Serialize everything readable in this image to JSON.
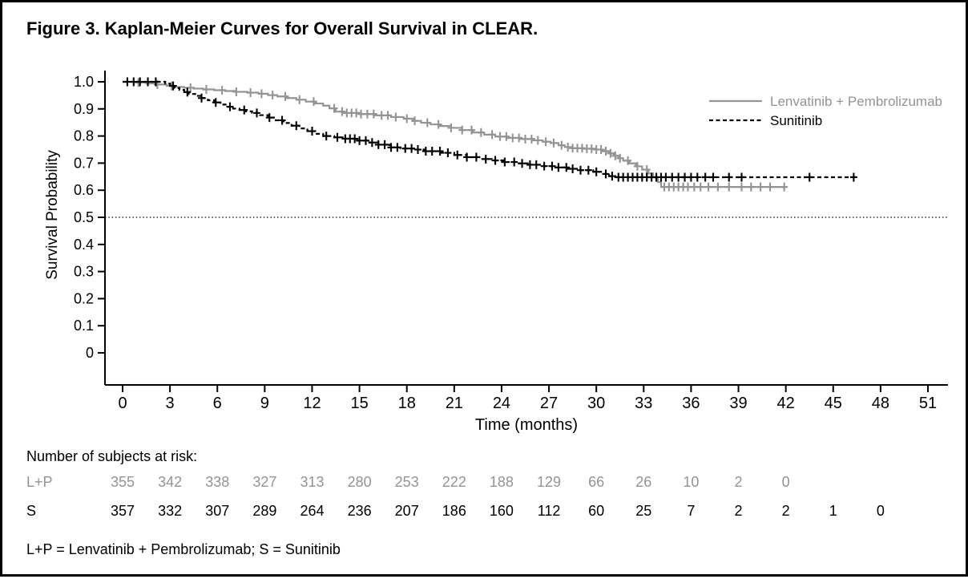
{
  "figure": {
    "title": "Figure 3. Kaplan-Meier Curves for Overall Survival in CLEAR.",
    "risk_header": "Number of subjects at risk:",
    "footnote": "L+P = Lenvatinib + Pembrolizumab; S = Sunitinib"
  },
  "colors": {
    "lp_gray": "#949494",
    "black": "#000000",
    "background": "#ffffff",
    "border": "#000000"
  },
  "chart_data": {
    "type": "line",
    "subtype": "kaplan-meier-step",
    "title": "",
    "xlabel": "Time (months)",
    "ylabel": "Survival Probability",
    "xlim": [
      0,
      51
    ],
    "xticks": [
      0,
      3,
      6,
      9,
      12,
      15,
      18,
      21,
      24,
      27,
      30,
      33,
      36,
      39,
      42,
      45,
      48,
      51
    ],
    "ylim": [
      0,
      1.0
    ],
    "yticks": [
      0,
      0.1,
      0.2,
      0.3,
      0.4,
      0.5,
      0.6,
      0.7,
      0.8,
      0.9,
      1.0
    ],
    "ytick_labels": [
      "0",
      "0.1",
      "0.2",
      "0.3",
      "0.4",
      "0.5",
      "0.6",
      "0.7",
      "0.8",
      "0.9",
      "1.0"
    ],
    "grid": false,
    "reference_line": {
      "y": 0.5,
      "style": "dotted"
    },
    "legend": {
      "position": "top-right",
      "entries": [
        {
          "label": "Lenvatinib + Pembrolizumab",
          "color": "#949494",
          "line_style": "solid"
        },
        {
          "label": "Sunitinib",
          "color": "#000000",
          "line_style": "dashed"
        }
      ]
    },
    "series": [
      {
        "name": "Lenvatinib + Pembrolizumab",
        "abbr": "L+P",
        "color": "#949494",
        "line_style": "solid",
        "steps": [
          [
            0,
            1.0
          ],
          [
            0.8,
            0.997
          ],
          [
            1.5,
            0.994
          ],
          [
            2.2,
            0.99
          ],
          [
            2.8,
            0.985
          ],
          [
            3.3,
            0.981
          ],
          [
            3.9,
            0.978
          ],
          [
            4.5,
            0.975
          ],
          [
            5.1,
            0.972
          ],
          [
            5.8,
            0.969
          ],
          [
            6.5,
            0.966
          ],
          [
            7.2,
            0.963
          ],
          [
            7.9,
            0.96
          ],
          [
            8.6,
            0.956
          ],
          [
            9.2,
            0.951
          ],
          [
            9.8,
            0.946
          ],
          [
            10.4,
            0.94
          ],
          [
            11.0,
            0.934
          ],
          [
            11.6,
            0.927
          ],
          [
            12.2,
            0.92
          ],
          [
            12.7,
            0.912
          ],
          [
            13.1,
            0.902
          ],
          [
            13.5,
            0.89
          ],
          [
            14.0,
            0.885
          ],
          [
            15.0,
            0.881
          ],
          [
            16.0,
            0.876
          ],
          [
            17.0,
            0.87
          ],
          [
            17.8,
            0.864
          ],
          [
            18.4,
            0.856
          ],
          [
            18.9,
            0.849
          ],
          [
            19.5,
            0.843
          ],
          [
            20.1,
            0.837
          ],
          [
            20.8,
            0.83
          ],
          [
            21.5,
            0.822
          ],
          [
            22.2,
            0.813
          ],
          [
            22.9,
            0.805
          ],
          [
            23.6,
            0.798
          ],
          [
            24.4,
            0.793
          ],
          [
            25.2,
            0.789
          ],
          [
            26.0,
            0.784
          ],
          [
            26.6,
            0.779
          ],
          [
            27.1,
            0.774
          ],
          [
            27.6,
            0.766
          ],
          [
            28.0,
            0.759
          ],
          [
            28.5,
            0.755
          ],
          [
            29.2,
            0.753
          ],
          [
            30.0,
            0.75
          ],
          [
            30.4,
            0.744
          ],
          [
            30.8,
            0.736
          ],
          [
            31.1,
            0.727
          ],
          [
            31.4,
            0.718
          ],
          [
            31.7,
            0.709
          ],
          [
            32.1,
            0.699
          ],
          [
            32.5,
            0.688
          ],
          [
            32.9,
            0.676
          ],
          [
            33.3,
            0.662
          ],
          [
            33.6,
            0.647
          ],
          [
            33.9,
            0.63
          ],
          [
            34.1,
            0.612
          ],
          [
            42.0,
            0.612
          ]
        ],
        "censor_times": [
          1.0,
          2.2,
          3.1,
          4.3,
          5.3,
          6.3,
          7.2,
          8.1,
          8.8,
          9.5,
          10.3,
          11.2,
          12.1,
          13.4,
          13.9,
          14.2,
          14.5,
          14.8,
          15.1,
          15.5,
          15.9,
          16.4,
          16.8,
          17.3,
          18.0,
          18.5,
          19.3,
          20.0,
          20.8,
          21.5,
          22.1,
          22.7,
          23.4,
          23.9,
          24.3,
          24.7,
          25.1,
          25.5,
          25.9,
          26.3,
          26.8,
          27.3,
          27.8,
          28.2,
          28.5,
          28.8,
          29.1,
          29.4,
          29.7,
          30.0,
          30.3,
          30.6,
          30.9,
          31.2,
          31.5,
          32.0,
          32.6,
          33.2,
          34.3,
          34.6,
          34.9,
          35.2,
          35.5,
          35.8,
          36.2,
          36.6,
          37.1,
          37.7,
          38.4,
          39.2,
          39.8,
          40.4,
          41.0,
          41.9
        ]
      },
      {
        "name": "Sunitinib",
        "abbr": "S",
        "color": "#000000",
        "line_style": "dashed",
        "steps": [
          [
            0,
            1.0
          ],
          [
            2.4,
            1.0
          ],
          [
            2.7,
            0.993
          ],
          [
            3.0,
            0.985
          ],
          [
            3.3,
            0.977
          ],
          [
            3.6,
            0.97
          ],
          [
            3.9,
            0.962
          ],
          [
            4.2,
            0.955
          ],
          [
            4.6,
            0.948
          ],
          [
            5.0,
            0.94
          ],
          [
            5.4,
            0.932
          ],
          [
            5.8,
            0.924
          ],
          [
            6.2,
            0.916
          ],
          [
            6.6,
            0.908
          ],
          [
            7.0,
            0.901
          ],
          [
            7.4,
            0.896
          ],
          [
            7.8,
            0.891
          ],
          [
            8.2,
            0.885
          ],
          [
            8.7,
            0.877
          ],
          [
            9.2,
            0.868
          ],
          [
            9.7,
            0.858
          ],
          [
            10.2,
            0.848
          ],
          [
            10.7,
            0.838
          ],
          [
            11.2,
            0.828
          ],
          [
            11.7,
            0.818
          ],
          [
            12.2,
            0.808
          ],
          [
            12.7,
            0.8
          ],
          [
            13.4,
            0.795
          ],
          [
            14.1,
            0.79
          ],
          [
            14.8,
            0.783
          ],
          [
            15.5,
            0.776
          ],
          [
            16.2,
            0.768
          ],
          [
            16.9,
            0.758
          ],
          [
            17.6,
            0.754
          ],
          [
            18.4,
            0.75
          ],
          [
            19.2,
            0.744
          ],
          [
            20.2,
            0.738
          ],
          [
            21.0,
            0.73
          ],
          [
            21.8,
            0.722
          ],
          [
            22.6,
            0.715
          ],
          [
            23.4,
            0.71
          ],
          [
            24.2,
            0.704
          ],
          [
            25.0,
            0.699
          ],
          [
            25.8,
            0.694
          ],
          [
            26.6,
            0.689
          ],
          [
            27.4,
            0.684
          ],
          [
            28.2,
            0.679
          ],
          [
            29.0,
            0.674
          ],
          [
            29.8,
            0.668
          ],
          [
            30.3,
            0.66
          ],
          [
            30.8,
            0.652
          ],
          [
            31.2,
            0.648
          ],
          [
            46.3,
            0.648
          ]
        ],
        "censor_times": [
          0.3,
          0.7,
          1.1,
          1.6,
          2.1,
          3.2,
          4.1,
          5.0,
          5.9,
          6.8,
          7.7,
          8.5,
          9.3,
          10.1,
          11.0,
          12.0,
          12.9,
          13.6,
          14.1,
          14.4,
          14.7,
          15.0,
          15.4,
          15.8,
          16.2,
          16.6,
          17.0,
          17.4,
          17.9,
          18.3,
          18.7,
          19.2,
          19.6,
          20.1,
          20.6,
          21.2,
          21.8,
          22.4,
          23.0,
          23.6,
          24.2,
          24.8,
          25.3,
          25.8,
          26.2,
          26.7,
          27.2,
          27.6,
          28.1,
          28.5,
          29.0,
          29.5,
          30.0,
          30.6,
          31.0,
          31.4,
          31.7,
          32.0,
          32.3,
          32.6,
          32.9,
          33.2,
          33.5,
          33.8,
          34.1,
          34.4,
          34.8,
          35.2,
          35.6,
          36.0,
          36.4,
          36.9,
          37.4,
          38.4,
          39.2,
          43.5,
          46.3
        ]
      }
    ],
    "at_risk": {
      "header": "Number of subjects at risk:",
      "time_step": 3,
      "rows": [
        {
          "label": "L+P",
          "color": "#949494",
          "counts": [
            355,
            342,
            338,
            327,
            313,
            280,
            253,
            222,
            188,
            129,
            66,
            26,
            10,
            2,
            0
          ]
        },
        {
          "label": "S",
          "color": "#000000",
          "counts": [
            357,
            332,
            307,
            289,
            264,
            236,
            207,
            186,
            160,
            112,
            60,
            25,
            7,
            2,
            2,
            1,
            0
          ]
        }
      ]
    }
  }
}
